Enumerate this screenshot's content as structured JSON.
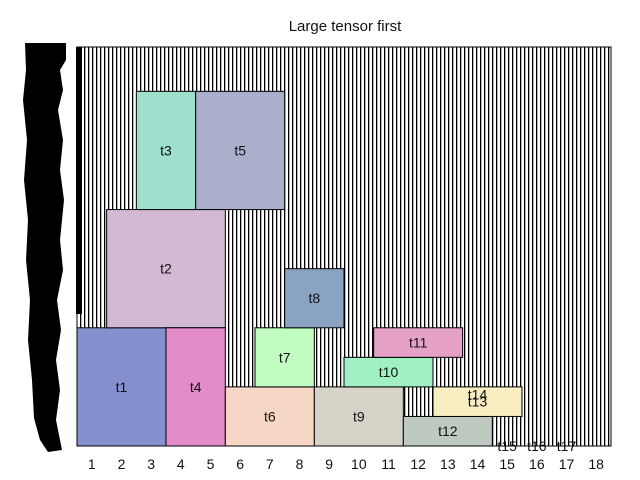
{
  "chart_data": {
    "type": "heatmap",
    "title": "Large tensor first",
    "x_ticks": [
      "1",
      "2",
      "3",
      "4",
      "5",
      "6",
      "7",
      "8",
      "9",
      "10",
      "11",
      "12",
      "13",
      "14",
      "15",
      "16",
      "17",
      "18"
    ],
    "x_range": [
      0.5,
      18.5
    ],
    "y_range": [
      0,
      13.5
    ],
    "background": "vertical-hatch",
    "blocks": [
      {
        "label": "t1",
        "x0": 0.5,
        "x1": 3.5,
        "y0": 0,
        "y1": 4,
        "color": "#8591cf"
      },
      {
        "label": "t2",
        "x0": 1.5,
        "x1": 5.5,
        "y0": 4,
        "y1": 8,
        "color": "#d3b9d3"
      },
      {
        "label": "t3",
        "x0": 2.5,
        "x1": 4.5,
        "y0": 8,
        "y1": 12,
        "color": "#9ee0cd"
      },
      {
        "label": "t4",
        "x0": 3.5,
        "x1": 5.5,
        "y0": 0,
        "y1": 4,
        "color": "#e48bc9"
      },
      {
        "label": "t5",
        "x0": 4.5,
        "x1": 7.5,
        "y0": 8,
        "y1": 12,
        "color": "#aab0cc"
      },
      {
        "label": "t6",
        "x0": 5.5,
        "x1": 8.5,
        "y0": 0,
        "y1": 2,
        "color": "#f6d6c5"
      },
      {
        "label": "t7",
        "x0": 6.5,
        "x1": 8.5,
        "y0": 2,
        "y1": 4,
        "color": "#c1fdc1"
      },
      {
        "label": "t8",
        "x0": 7.5,
        "x1": 9.5,
        "y0": 4,
        "y1": 6,
        "color": "#8aa3c3"
      },
      {
        "label": "t9",
        "x0": 8.5,
        "x1": 11.5,
        "y0": 0,
        "y1": 2,
        "color": "#d6d3c8"
      },
      {
        "label": "t10",
        "x0": 9.5,
        "x1": 12.5,
        "y0": 2,
        "y1": 3,
        "color": "#9ff1c3"
      },
      {
        "label": "t11",
        "x0": 10.5,
        "x1": 13.5,
        "y0": 3,
        "y1": 4,
        "color": "#e6a2c6"
      },
      {
        "label": "t12",
        "x0": 11.5,
        "x1": 14.5,
        "y0": 0,
        "y1": 1,
        "color": "#bdc9c1"
      },
      {
        "label": "t13",
        "x0": 12.5,
        "x1": 15.5,
        "y0": 1,
        "y1": 2,
        "color": "#f9eec1"
      },
      {
        "label": "t14",
        "x0": 13.5,
        "x1": 14.5,
        "y0": 1.5,
        "y1": 2,
        "color": "none"
      },
      {
        "label": "t15",
        "x0": 14.5,
        "x1": 15.5,
        "y0": 0,
        "y1": 0,
        "color": "none"
      },
      {
        "label": "t16",
        "x0": 15.5,
        "x1": 16.5,
        "y0": 0,
        "y1": 0,
        "color": "none"
      },
      {
        "label": "t17",
        "x0": 16.5,
        "x1": 17.5,
        "y0": 0,
        "y1": 0,
        "color": "none"
      }
    ]
  }
}
